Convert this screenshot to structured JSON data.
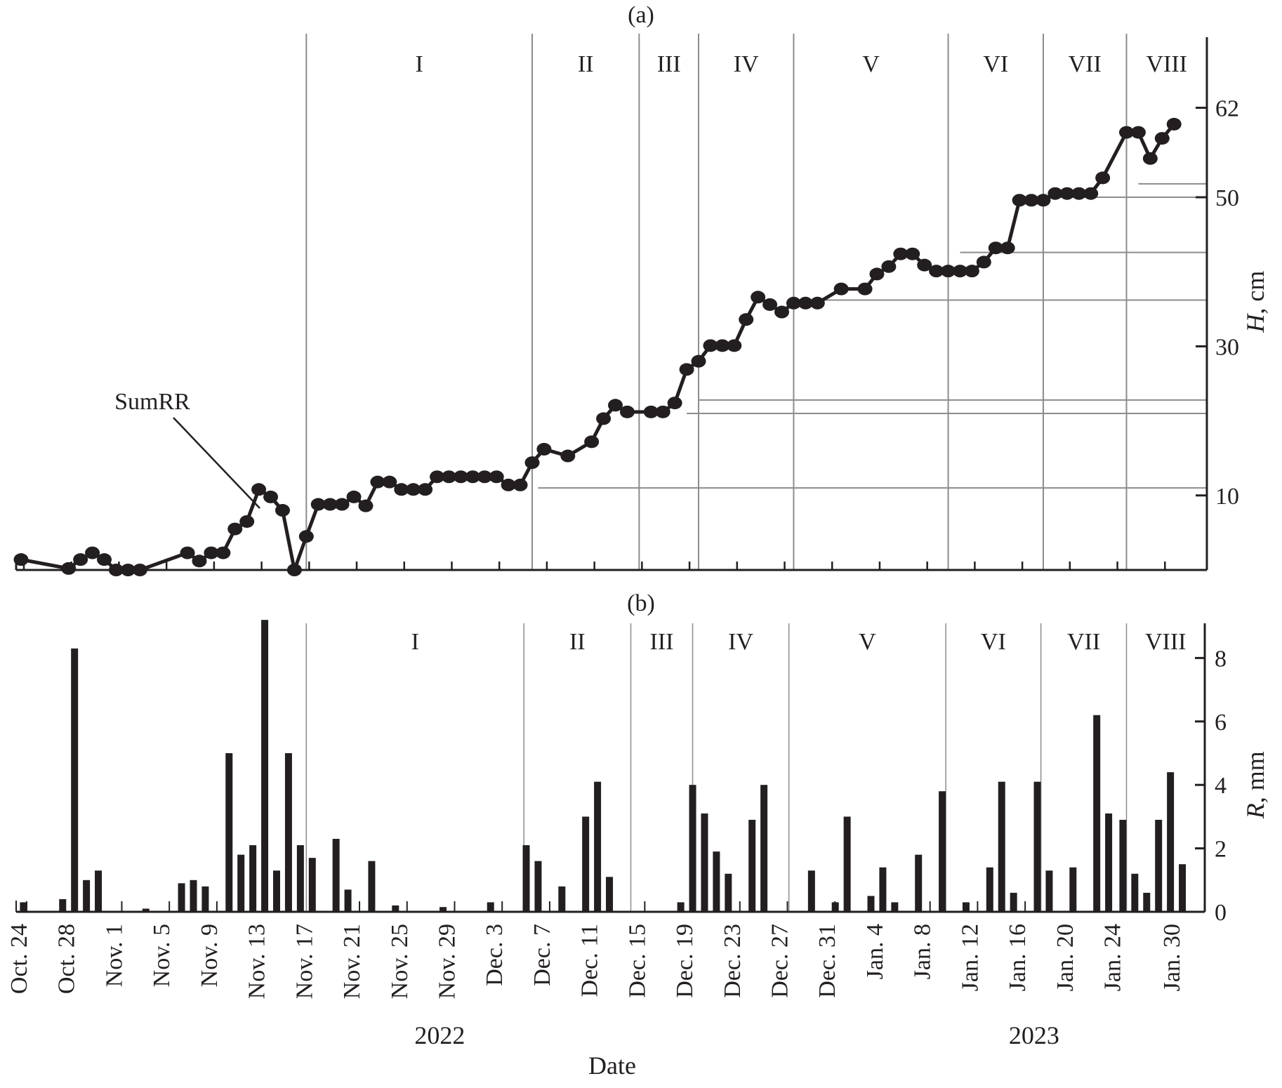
{
  "chart_data": [
    {
      "panel": "(a)",
      "type": "line",
      "title": "(a)",
      "xlabel": "Date",
      "ylabel": "H, cm",
      "y_ticks": [
        10,
        30,
        50,
        62
      ],
      "ylim": [
        0,
        66
      ],
      "grid": false,
      "annotations": [
        {
          "text": "SumRR",
          "points_to_day": 21
        }
      ],
      "periods": [
        {
          "label": "I",
          "start_day": 24
        },
        {
          "label": "II",
          "start_day": 43
        },
        {
          "label": "III",
          "start_day": 52
        },
        {
          "label": "IV",
          "start_day": 57
        },
        {
          "label": "V",
          "start_day": 65
        },
        {
          "label": "VI",
          "start_day": 78
        },
        {
          "label": "VII",
          "start_day": 86
        },
        {
          "label": "VIII",
          "start_day": 93
        }
      ],
      "level_lines": [
        {
          "from_day": 43.5,
          "value": 11.0
        },
        {
          "from_day": 56,
          "value": 21.0
        },
        {
          "from_day": 57,
          "value": 22.8
        },
        {
          "from_day": 65,
          "value": 36.2
        },
        {
          "from_day": 79,
          "value": 42.6
        },
        {
          "from_day": 86,
          "value": 50.0
        },
        {
          "from_day": 94,
          "value": 51.8
        }
      ],
      "series": [
        {
          "name": "H",
          "points": [
            [
              0,
              1.4
            ],
            [
              4,
              0.2
            ],
            [
              5,
              1.4
            ],
            [
              6,
              2.3
            ],
            [
              7,
              1.4
            ],
            [
              8,
              0
            ],
            [
              9,
              0
            ],
            [
              10,
              0
            ],
            [
              14,
              2.3
            ],
            [
              15,
              1.2
            ],
            [
              16,
              2.3
            ],
            [
              17,
              2.3
            ],
            [
              18,
              5.5
            ],
            [
              19,
              6.5
            ],
            [
              20,
              10.8
            ],
            [
              21,
              9.8
            ],
            [
              22,
              8.0
            ],
            [
              23,
              0
            ],
            [
              24,
              4.5
            ],
            [
              25,
              8.8
            ],
            [
              26,
              8.8
            ],
            [
              27,
              8.8
            ],
            [
              28,
              9.8
            ],
            [
              29,
              8.6
            ],
            [
              30,
              11.8
            ],
            [
              31,
              11.8
            ],
            [
              32,
              10.8
            ],
            [
              33,
              10.8
            ],
            [
              34,
              10.8
            ],
            [
              35,
              12.5
            ],
            [
              36,
              12.5
            ],
            [
              37,
              12.5
            ],
            [
              38,
              12.5
            ],
            [
              39,
              12.5
            ],
            [
              40,
              12.5
            ],
            [
              41,
              11.4
            ],
            [
              42,
              11.4
            ],
            [
              43,
              14.4
            ],
            [
              44,
              16.2
            ],
            [
              46,
              15.3
            ],
            [
              48,
              17.2
            ],
            [
              49,
              20.3
            ],
            [
              50,
              22.1
            ],
            [
              51,
              21.2
            ],
            [
              53,
              21.2
            ],
            [
              54,
              21.2
            ],
            [
              55,
              22.4
            ],
            [
              56,
              26.9
            ],
            [
              57,
              28.0
            ],
            [
              58,
              30.1
            ],
            [
              59,
              30.1
            ],
            [
              60,
              30.1
            ],
            [
              61,
              33.6
            ],
            [
              62,
              36.6
            ],
            [
              63,
              35.6
            ],
            [
              64,
              34.6
            ],
            [
              65,
              35.8
            ],
            [
              66,
              35.8
            ],
            [
              67,
              35.8
            ],
            [
              69,
              37.7
            ],
            [
              71,
              37.7
            ],
            [
              72,
              39.7
            ],
            [
              73,
              40.7
            ],
            [
              74,
              42.4
            ],
            [
              75,
              42.4
            ],
            [
              76,
              40.9
            ],
            [
              77,
              40.1
            ],
            [
              78,
              40.1
            ],
            [
              79,
              40.1
            ],
            [
              80,
              40.1
            ],
            [
              81,
              41.3
            ],
            [
              82,
              43.2
            ],
            [
              83,
              43.2
            ],
            [
              84,
              49.6
            ],
            [
              85,
              49.6
            ],
            [
              86,
              49.6
            ],
            [
              87,
              50.5
            ],
            [
              88,
              50.5
            ],
            [
              89,
              50.5
            ],
            [
              90,
              50.5
            ],
            [
              91,
              52.6
            ],
            [
              93,
              58.7
            ],
            [
              94,
              58.7
            ],
            [
              95,
              55.2
            ],
            [
              96,
              57.9
            ],
            [
              97,
              59.8
            ]
          ]
        }
      ]
    },
    {
      "panel": "(b)",
      "type": "bar",
      "title": "(b)",
      "xlabel": "Date",
      "ylabel": "R, mm",
      "y_ticks": [
        0,
        2,
        4,
        6,
        8
      ],
      "ylim": [
        0,
        9.2
      ],
      "grid": false,
      "periods": [
        {
          "label": "I",
          "start_day": 24
        },
        {
          "label": "II",
          "start_day": 42.3
        },
        {
          "label": "III",
          "start_day": 51.3
        },
        {
          "label": "IV",
          "start_day": 56.5
        },
        {
          "label": "V",
          "start_day": 64.6
        },
        {
          "label": "VI",
          "start_day": 77.8
        },
        {
          "label": "VII",
          "start_day": 85.8
        },
        {
          "label": "VIII",
          "start_day": 93
        }
      ],
      "series": [
        {
          "name": "R",
          "bars": [
            [
              0.2,
              0.3
            ],
            [
              3.5,
              0.4
            ],
            [
              4.5,
              8.3
            ],
            [
              5.5,
              1.0
            ],
            [
              6.5,
              1.3
            ],
            [
              10.5,
              0.1
            ],
            [
              13.5,
              0.9
            ],
            [
              14.5,
              1.0
            ],
            [
              15.5,
              0.8
            ],
            [
              17.5,
              5.0
            ],
            [
              18.5,
              1.8
            ],
            [
              19.5,
              2.1
            ],
            [
              20.5,
              9.2
            ],
            [
              21.5,
              1.3
            ],
            [
              22.5,
              5.0
            ],
            [
              23.5,
              2.1
            ],
            [
              24.5,
              1.7
            ],
            [
              26.5,
              2.3
            ],
            [
              27.5,
              0.7
            ],
            [
              29.5,
              1.6
            ],
            [
              31.5,
              0.2
            ],
            [
              35.5,
              0.15
            ],
            [
              39.5,
              0.3
            ],
            [
              42.5,
              2.1
            ],
            [
              43.5,
              1.6
            ],
            [
              45.5,
              0.8
            ],
            [
              47.5,
              3.0
            ],
            [
              48.5,
              4.1
            ],
            [
              49.5,
              1.1
            ],
            [
              55.5,
              0.3
            ],
            [
              56.5,
              4.0
            ],
            [
              57.5,
              3.1
            ],
            [
              58.5,
              1.9
            ],
            [
              59.5,
              1.2
            ],
            [
              61.5,
              2.9
            ],
            [
              62.5,
              4.0
            ],
            [
              66.5,
              1.3
            ],
            [
              68.5,
              0.3
            ],
            [
              69.5,
              3.0
            ],
            [
              71.5,
              0.5
            ],
            [
              72.5,
              1.4
            ],
            [
              73.5,
              0.3
            ],
            [
              75.5,
              1.8
            ],
            [
              77.5,
              3.8
            ],
            [
              79.5,
              0.3
            ],
            [
              81.5,
              1.4
            ],
            [
              82.5,
              4.1
            ],
            [
              83.5,
              0.6
            ],
            [
              85.5,
              4.1
            ],
            [
              86.5,
              1.3
            ],
            [
              88.5,
              1.4
            ],
            [
              90.5,
              6.2
            ],
            [
              91.5,
              3.1
            ],
            [
              92.7,
              2.9
            ],
            [
              93.7,
              1.2
            ],
            [
              94.7,
              0.6
            ],
            [
              95.7,
              2.9
            ],
            [
              96.7,
              4.4
            ],
            [
              97.7,
              1.5
            ]
          ]
        }
      ]
    }
  ],
  "figure": {
    "panel_a_label": "(a)",
    "panel_b_label": "(b)",
    "y_label_a_italic": "H",
    "y_label_a_rest": ", cm",
    "y_label_b_italic": "R",
    "y_label_b_rest": ", mm",
    "annotation": "SumRR",
    "x_title": "Date",
    "years": [
      {
        "label": "2022",
        "day": 37
      },
      {
        "label": "2023",
        "day": 87
      }
    ],
    "x_tick_labels": [
      {
        "label": "Oct. 24",
        "day": 0
      },
      {
        "label": "Oct. 28",
        "day": 4
      },
      {
        "label": "Nov. 1",
        "day": 8
      },
      {
        "label": "Nov. 5",
        "day": 12
      },
      {
        "label": "Nov. 9",
        "day": 16
      },
      {
        "label": "Nov. 13",
        "day": 20
      },
      {
        "label": "Nov. 17",
        "day": 24
      },
      {
        "label": "Nov. 21",
        "day": 28
      },
      {
        "label": "Nov. 25",
        "day": 32
      },
      {
        "label": "Nov. 29",
        "day": 36
      },
      {
        "label": "Dec. 3",
        "day": 40
      },
      {
        "label": "Dec. 7",
        "day": 44
      },
      {
        "label": "Dec. 11",
        "day": 48
      },
      {
        "label": "Dec. 15",
        "day": 52
      },
      {
        "label": "Dec. 19",
        "day": 56
      },
      {
        "label": "Dec. 23",
        "day": 60
      },
      {
        "label": "Dec. 27",
        "day": 64
      },
      {
        "label": "Dec. 31",
        "day": 68
      },
      {
        "label": "Jan. 4",
        "day": 72
      },
      {
        "label": "Jan. 8",
        "day": 76
      },
      {
        "label": "Jan. 12",
        "day": 80
      },
      {
        "label": "Jan. 16",
        "day": 84
      },
      {
        "label": "Jan. 20",
        "day": 88
      },
      {
        "label": "Jan. 24",
        "day": 92
      },
      {
        "label": "Jan. 30",
        "day": 97
      }
    ],
    "colors": {
      "ink": "#231f20",
      "period_line": "#8c8c8c"
    }
  }
}
